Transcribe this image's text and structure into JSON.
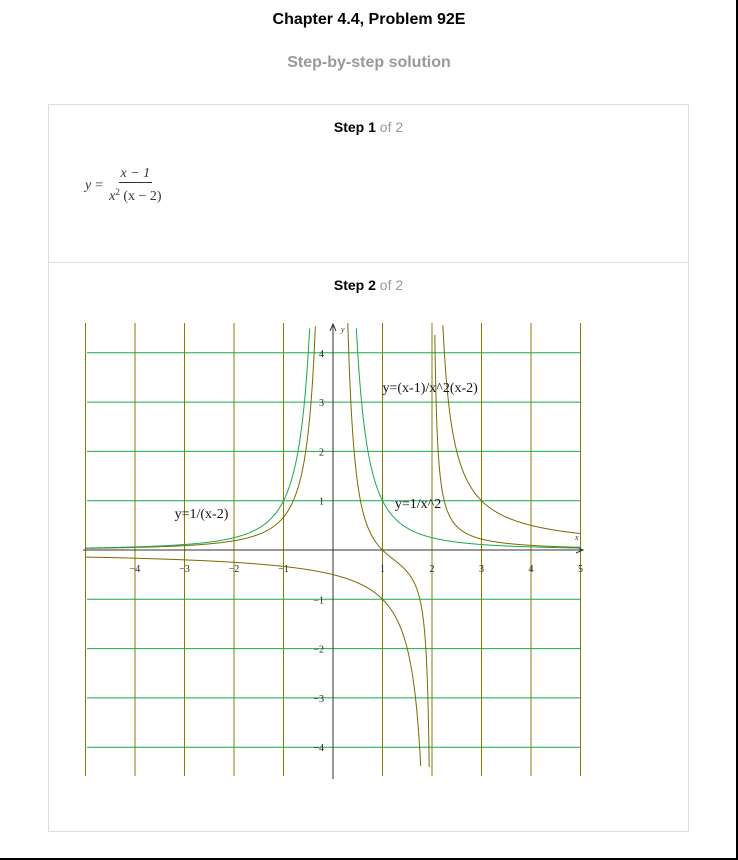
{
  "header": {
    "title": "Chapter 4.4, Problem 92E",
    "subtitle": "Step-by-step solution"
  },
  "steps": [
    {
      "label": "Step",
      "number": "1",
      "of_total": "of 2",
      "formula": {
        "lhs": "y",
        "equals": "=",
        "numerator": "x − 1",
        "denominator_base": "x",
        "denominator_exp": "2",
        "denominator_rest": "(x − 2)"
      }
    },
    {
      "label": "Step",
      "number": "2",
      "of_total": "of 2"
    }
  ],
  "colors": {
    "grid_vertical": "#8a7a00",
    "grid_horizontal": "#1aa84a",
    "curve_olive": "#7a6a00",
    "curve_green": "#1aa84a",
    "axis": "#333333"
  },
  "chart_data": {
    "type": "line",
    "xlim": [
      -5,
      5
    ],
    "ylim": [
      -4.5,
      4.5
    ],
    "grid": true,
    "x_ticks": [
      -4,
      -3,
      -2,
      -1,
      1,
      2,
      3,
      4,
      5
    ],
    "y_ticks": [
      -4,
      -3,
      -2,
      -1,
      1,
      2,
      3,
      4
    ],
    "x_axis_label": "x",
    "y_axis_label": "y",
    "series": [
      {
        "name": "y=(x-1)/x^2(x-2)",
        "color": "#7a6a00"
      },
      {
        "name": "y=1/(x-2)",
        "color": "#7a6a00"
      },
      {
        "name": "y=1/x^2",
        "color": "#1aa84a"
      }
    ],
    "annotations": [
      {
        "text": "y=(x-1)/x^2(x-2)",
        "x": 1.0,
        "y": 3.2
      },
      {
        "text": "y=1/x^2",
        "x": 1.25,
        "y": 0.85
      },
      {
        "text": "y=1/(x-2)",
        "x": -3.2,
        "y": 0.65
      }
    ]
  }
}
